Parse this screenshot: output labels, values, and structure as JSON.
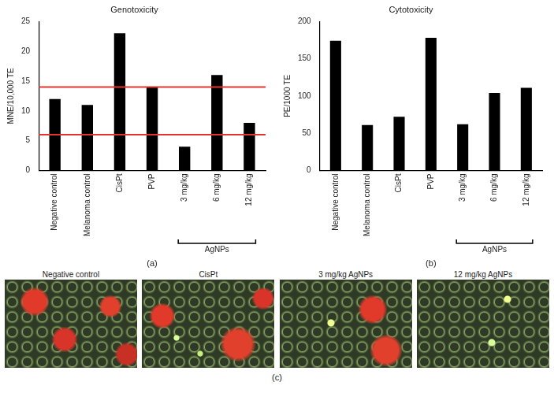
{
  "chart_data": [
    {
      "type": "bar",
      "panel": "(a)",
      "title": "Genotoxicity",
      "y_label": "MNE/10,000 TE",
      "categories": [
        "Negative control",
        "Melanoma control",
        "CisPt",
        "PVP",
        "3 mg/kg",
        "6 mg/kg",
        "12 mg/kg"
      ],
      "values": [
        12,
        11,
        23,
        14,
        4,
        16,
        8
      ],
      "color": "#000000",
      "ylim": [
        0,
        25
      ],
      "yticks": [
        0,
        5,
        10,
        15,
        20,
        25
      ],
      "grid": false,
      "reference_lines": [
        14,
        6
      ],
      "groups": [
        {
          "label": "AgNPs",
          "from": "3 mg/kg",
          "to": "12 mg/kg"
        }
      ]
    },
    {
      "type": "bar",
      "panel": "(b)",
      "title": "Cytotoxicity",
      "y_label": "PE/1000 TE",
      "categories": [
        "Negative control",
        "Melanoma control",
        "CisPt",
        "PVP",
        "3 mg/kg",
        "6 mg/kg",
        "12 mg/kg"
      ],
      "values": [
        174,
        61,
        72,
        178,
        62,
        104,
        111
      ],
      "color": "#000000",
      "ylim": [
        0,
        200
      ],
      "yticks": [
        0,
        50,
        100,
        150,
        200
      ],
      "grid": false,
      "groups": [
        {
          "label": "AgNPs",
          "from": "3 mg/kg",
          "to": "12 mg/kg"
        }
      ]
    }
  ],
  "image_panel": {
    "panel": "(c)",
    "titles": [
      "Negative control",
      "CisPt",
      "3 mg/kg AgNPs",
      "12 mg/kg AgNPs"
    ]
  }
}
